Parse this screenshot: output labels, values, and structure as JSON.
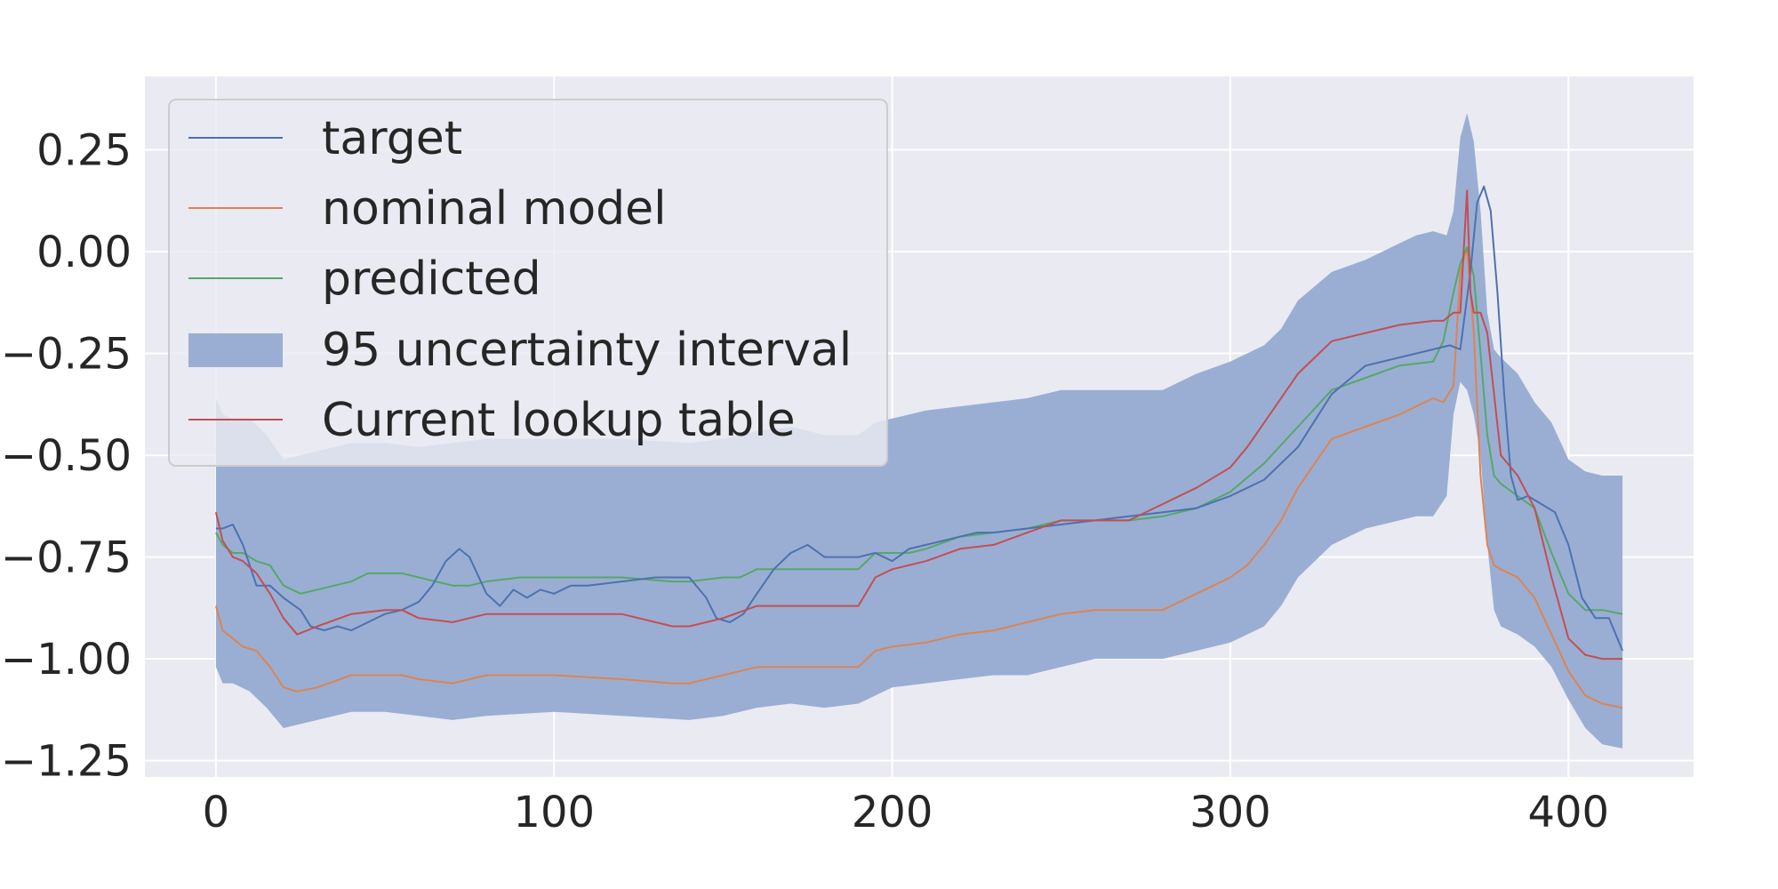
{
  "chart_data": {
    "type": "line",
    "title": "",
    "xlabel": "",
    "ylabel": "",
    "xlim": [
      -21,
      437
    ],
    "ylim": [
      -1.29,
      0.43
    ],
    "x_ticks": [
      0,
      100,
      200,
      300,
      400
    ],
    "x_tick_labels": [
      "0",
      "100",
      "200",
      "300",
      "400"
    ],
    "y_ticks": [
      0.25,
      0.0,
      -0.25,
      -0.5,
      -0.75,
      -1.0,
      -1.25
    ],
    "y_tick_labels": [
      "0.25",
      "0.00",
      "−0.25",
      "−0.50",
      "−0.75",
      "−1.00",
      "−1.25"
    ],
    "grid": true,
    "legend_position": "top-left",
    "colors": {
      "background": "#eaeaf2",
      "grid": "#ffffff",
      "target": "#4c72b0",
      "nominal": "#dd8452",
      "predicted": "#55a868",
      "lookup": "#c44e52",
      "band": "#9aaed3"
    },
    "band": {
      "name": "95 uncertainty interval",
      "x": [
        0,
        2,
        5,
        10,
        15,
        20,
        25,
        30,
        40,
        50,
        60,
        70,
        80,
        100,
        120,
        140,
        150,
        160,
        170,
        180,
        190,
        195,
        200,
        210,
        220,
        230,
        240,
        250,
        260,
        270,
        280,
        290,
        300,
        310,
        315,
        320,
        330,
        340,
        350,
        355,
        360,
        364,
        366,
        368,
        370,
        372,
        374,
        376,
        378,
        380,
        385,
        390,
        395,
        400,
        405,
        410,
        416
      ],
      "lower": [
        -1.02,
        -1.06,
        -1.06,
        -1.08,
        -1.12,
        -1.17,
        -1.16,
        -1.15,
        -1.13,
        -1.13,
        -1.14,
        -1.15,
        -1.14,
        -1.13,
        -1.14,
        -1.15,
        -1.14,
        -1.12,
        -1.11,
        -1.12,
        -1.11,
        -1.09,
        -1.07,
        -1.06,
        -1.05,
        -1.04,
        -1.04,
        -1.02,
        -1.0,
        -1.0,
        -1.0,
        -0.98,
        -0.96,
        -0.92,
        -0.87,
        -0.8,
        -0.72,
        -0.68,
        -0.66,
        -0.65,
        -0.65,
        -0.6,
        -0.4,
        -0.32,
        -0.34,
        -0.4,
        -0.5,
        -0.72,
        -0.88,
        -0.92,
        -0.94,
        -0.97,
        -1.02,
        -1.1,
        -1.17,
        -1.21,
        -1.22
      ],
      "upper": [
        -0.36,
        -0.4,
        -0.41,
        -0.41,
        -0.45,
        -0.51,
        -0.5,
        -0.49,
        -0.47,
        -0.47,
        -0.48,
        -0.47,
        -0.46,
        -0.46,
        -0.46,
        -0.47,
        -0.46,
        -0.44,
        -0.43,
        -0.45,
        -0.45,
        -0.42,
        -0.41,
        -0.39,
        -0.38,
        -0.37,
        -0.36,
        -0.34,
        -0.34,
        -0.34,
        -0.34,
        -0.3,
        -0.27,
        -0.23,
        -0.19,
        -0.12,
        -0.05,
        -0.02,
        0.02,
        0.04,
        0.05,
        0.04,
        0.1,
        0.28,
        0.34,
        0.27,
        0.1,
        -0.15,
        -0.24,
        -0.26,
        -0.3,
        -0.37,
        -0.42,
        -0.51,
        -0.54,
        -0.55,
        -0.55
      ]
    },
    "series": [
      {
        "name": "target",
        "x": [
          0,
          2,
          5,
          8,
          12,
          16,
          20,
          25,
          28,
          32,
          36,
          40,
          45,
          50,
          55,
          60,
          64,
          68,
          72,
          75,
          80,
          84,
          88,
          92,
          96,
          100,
          105,
          110,
          120,
          130,
          135,
          140,
          145,
          148,
          152,
          156,
          160,
          165,
          170,
          175,
          180,
          185,
          190,
          195,
          200,
          205,
          210,
          215,
          220,
          225,
          230,
          240,
          250,
          260,
          270,
          280,
          290,
          300,
          310,
          320,
          330,
          340,
          350,
          360,
          365,
          368,
          371,
          373,
          375,
          377,
          379,
          381,
          383,
          385,
          388,
          392,
          396,
          400,
          404,
          408,
          412,
          416
        ],
        "y": [
          -0.68,
          -0.68,
          -0.67,
          -0.72,
          -0.82,
          -0.82,
          -0.85,
          -0.88,
          -0.92,
          -0.93,
          -0.92,
          -0.93,
          -0.91,
          -0.89,
          -0.88,
          -0.86,
          -0.82,
          -0.76,
          -0.73,
          -0.75,
          -0.84,
          -0.87,
          -0.83,
          -0.85,
          -0.83,
          -0.84,
          -0.82,
          -0.82,
          -0.81,
          -0.8,
          -0.8,
          -0.8,
          -0.85,
          -0.9,
          -0.91,
          -0.89,
          -0.84,
          -0.78,
          -0.74,
          -0.72,
          -0.75,
          -0.75,
          -0.75,
          -0.74,
          -0.76,
          -0.73,
          -0.72,
          -0.71,
          -0.7,
          -0.69,
          -0.69,
          -0.68,
          -0.67,
          -0.66,
          -0.65,
          -0.64,
          -0.63,
          -0.6,
          -0.56,
          -0.48,
          -0.35,
          -0.28,
          -0.26,
          -0.24,
          -0.23,
          -0.24,
          -0.05,
          0.12,
          0.16,
          0.1,
          -0.1,
          -0.35,
          -0.55,
          -0.61,
          -0.6,
          -0.62,
          -0.64,
          -0.72,
          -0.85,
          -0.9,
          -0.9,
          -0.98
        ]
      },
      {
        "name": "nominal model",
        "x": [
          0,
          2,
          5,
          8,
          12,
          16,
          20,
          24,
          30,
          40,
          50,
          55,
          60,
          70,
          80,
          90,
          100,
          120,
          135,
          140,
          150,
          160,
          170,
          180,
          190,
          195,
          200,
          210,
          220,
          230,
          240,
          250,
          260,
          270,
          280,
          290,
          300,
          305,
          310,
          315,
          320,
          330,
          340,
          350,
          360,
          363,
          366,
          368,
          370,
          372,
          374,
          376,
          378,
          380,
          385,
          390,
          395,
          400,
          405,
          410,
          416
        ],
        "y": [
          -0.87,
          -0.93,
          -0.95,
          -0.97,
          -0.98,
          -1.02,
          -1.07,
          -1.08,
          -1.07,
          -1.04,
          -1.04,
          -1.04,
          -1.05,
          -1.06,
          -1.04,
          -1.04,
          -1.04,
          -1.05,
          -1.06,
          -1.06,
          -1.04,
          -1.02,
          -1.02,
          -1.02,
          -1.02,
          -0.98,
          -0.97,
          -0.96,
          -0.94,
          -0.93,
          -0.91,
          -0.89,
          -0.88,
          -0.88,
          -0.88,
          -0.84,
          -0.8,
          -0.77,
          -0.72,
          -0.66,
          -0.58,
          -0.46,
          -0.43,
          -0.4,
          -0.36,
          -0.37,
          -0.33,
          -0.05,
          0.01,
          -0.2,
          -0.55,
          -0.72,
          -0.77,
          -0.78,
          -0.8,
          -0.85,
          -0.94,
          -1.03,
          -1.09,
          -1.11,
          -1.12
        ]
      },
      {
        "name": "predicted",
        "x": [
          0,
          2,
          5,
          8,
          12,
          16,
          20,
          25,
          30,
          40,
          45,
          50,
          55,
          60,
          65,
          70,
          75,
          80,
          90,
          100,
          120,
          135,
          140,
          150,
          155,
          160,
          170,
          180,
          190,
          195,
          200,
          205,
          210,
          220,
          230,
          240,
          250,
          260,
          270,
          280,
          290,
          300,
          310,
          320,
          330,
          340,
          350,
          360,
          363,
          366,
          368,
          370,
          372,
          374,
          376,
          378,
          380,
          385,
          390,
          395,
          400,
          405,
          410,
          416
        ],
        "y": [
          -0.69,
          -0.72,
          -0.74,
          -0.74,
          -0.76,
          -0.77,
          -0.82,
          -0.84,
          -0.83,
          -0.81,
          -0.79,
          -0.79,
          -0.79,
          -0.8,
          -0.81,
          -0.82,
          -0.82,
          -0.81,
          -0.8,
          -0.8,
          -0.8,
          -0.81,
          -0.81,
          -0.8,
          -0.8,
          -0.78,
          -0.78,
          -0.78,
          -0.78,
          -0.74,
          -0.74,
          -0.74,
          -0.73,
          -0.7,
          -0.69,
          -0.68,
          -0.66,
          -0.66,
          -0.66,
          -0.65,
          -0.63,
          -0.59,
          -0.52,
          -0.43,
          -0.34,
          -0.31,
          -0.28,
          -0.27,
          -0.22,
          -0.1,
          -0.03,
          0.01,
          -0.06,
          -0.25,
          -0.45,
          -0.55,
          -0.57,
          -0.6,
          -0.63,
          -0.74,
          -0.84,
          -0.88,
          -0.88,
          -0.89
        ]
      },
      {
        "name": "Current lookup table",
        "x": [
          0,
          2,
          5,
          8,
          12,
          16,
          20,
          24,
          30,
          40,
          50,
          55,
          60,
          70,
          80,
          90,
          100,
          120,
          135,
          140,
          150,
          160,
          170,
          180,
          190,
          195,
          200,
          210,
          220,
          230,
          240,
          250,
          260,
          270,
          280,
          290,
          300,
          305,
          310,
          315,
          320,
          330,
          340,
          350,
          360,
          363,
          366,
          368,
          369,
          370,
          371,
          372,
          374,
          376,
          378,
          380,
          385,
          390,
          395,
          400,
          405,
          410,
          416
        ],
        "y": [
          -0.64,
          -0.71,
          -0.75,
          -0.76,
          -0.79,
          -0.84,
          -0.9,
          -0.94,
          -0.92,
          -0.89,
          -0.88,
          -0.88,
          -0.9,
          -0.91,
          -0.89,
          -0.89,
          -0.89,
          -0.89,
          -0.92,
          -0.92,
          -0.9,
          -0.87,
          -0.87,
          -0.87,
          -0.87,
          -0.8,
          -0.78,
          -0.76,
          -0.73,
          -0.72,
          -0.69,
          -0.66,
          -0.66,
          -0.66,
          -0.62,
          -0.58,
          -0.53,
          -0.48,
          -0.42,
          -0.36,
          -0.3,
          -0.22,
          -0.2,
          -0.18,
          -0.17,
          -0.17,
          -0.15,
          -0.15,
          0.0,
          0.15,
          -0.1,
          -0.15,
          -0.15,
          -0.2,
          -0.35,
          -0.5,
          -0.55,
          -0.63,
          -0.8,
          -0.95,
          -0.99,
          -1.0,
          -1.0
        ]
      }
    ]
  },
  "legend": {
    "items": [
      {
        "label": "target",
        "kind": "line",
        "color": "#4c72b0"
      },
      {
        "label": "nominal model",
        "kind": "line",
        "color": "#dd8452"
      },
      {
        "label": "predicted",
        "kind": "line",
        "color": "#55a868"
      },
      {
        "label": "95 uncertainty interval",
        "kind": "patch",
        "color": "#9aaed3"
      },
      {
        "label": "Current lookup table",
        "kind": "line",
        "color": "#c44e52"
      }
    ]
  }
}
